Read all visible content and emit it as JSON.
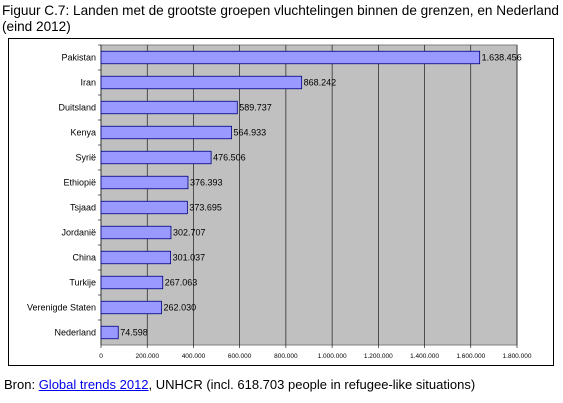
{
  "figure": {
    "title": "Figuur C.7: Landen met de grootste groepen vluchtelingen binnen de grenzen, en Nederland (eind 2012)"
  },
  "chart_data": {
    "type": "bar",
    "orientation": "horizontal",
    "categories": [
      "Pakistan",
      "Iran",
      "Duitsland",
      "Kenya",
      "Syrië",
      "Ethiopië",
      "Tsjaad",
      "Jordanië",
      "China",
      "Turkije",
      "Verenigde Staten",
      "Nederland"
    ],
    "values": [
      1638456,
      868242,
      589737,
      564933,
      476506,
      376393,
      373695,
      302707,
      301037,
      267063,
      262030,
      74598
    ],
    "value_labels": [
      "1.638.456",
      "868.242",
      "589.737",
      "564.933",
      "476.506",
      "376.393",
      "373.695",
      "302.707",
      "301.037",
      "267.063",
      "262.030",
      "74.598"
    ],
    "xlim": [
      0,
      1800000
    ],
    "xticks": [
      0,
      200000,
      400000,
      600000,
      800000,
      1000000,
      1200000,
      1400000,
      1600000,
      1800000
    ],
    "xtick_labels": [
      "0",
      "200.000",
      "400.000",
      "600.000",
      "800.000",
      "1.000.000",
      "1.200.000",
      "1.400.000",
      "1.600.000",
      "1.800.000"
    ],
    "grid": true,
    "legend": "none",
    "colors": {
      "bar": "#9999ff",
      "bar_stroke": "#000080",
      "plot_bg": "#c0c0c0",
      "grid": "#000000"
    }
  },
  "source": {
    "prefix": "Bron: ",
    "link_text": "Global trends 2012",
    "suffix": ", UNHCR (incl. 618.703 people in refugee-like situations)"
  }
}
